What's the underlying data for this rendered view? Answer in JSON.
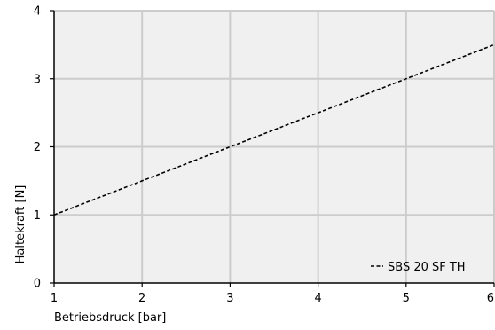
{
  "chart_data": {
    "type": "line",
    "title": "",
    "xlabel": "Betriebsdruck [bar]",
    "ylabel": "Haltekraft [N]",
    "xlim": [
      1,
      6
    ],
    "ylim": [
      0,
      4
    ],
    "xticks": [
      "1",
      "2",
      "3",
      "4",
      "5",
      "6"
    ],
    "yticks": [
      "0",
      "1",
      "2",
      "3",
      "4"
    ],
    "grid": true,
    "legend_position": "bottom-right",
    "plot_background": "#f0f0f0",
    "grid_color": "#cccccc",
    "series": [
      {
        "name": "SBS 20 SF TH",
        "style": "dashed",
        "color": "#000000",
        "x": [
          1,
          6
        ],
        "y": [
          1.0,
          3.5
        ]
      }
    ]
  }
}
